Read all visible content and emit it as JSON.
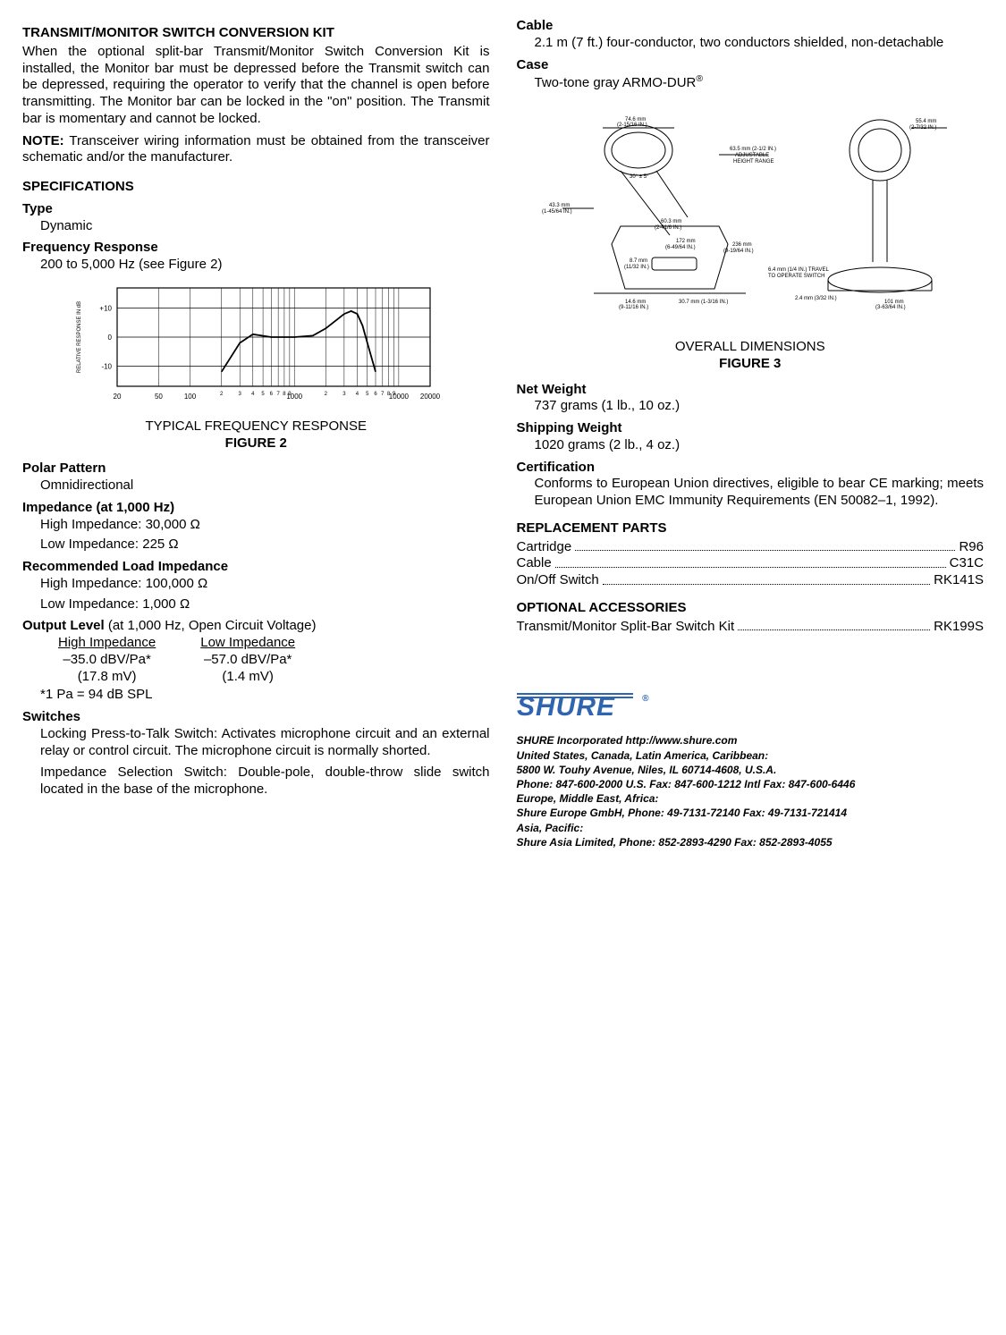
{
  "left": {
    "conv_kit": {
      "heading": "TRANSMIT/MONITOR SWITCH CONVERSION KIT",
      "body": "When the optional split-bar Transmit/Monitor Switch Conversion Kit is installed, the Monitor bar must be depressed before the Transmit switch can be depressed, requiring the operator to verify that the channel is open before transmitting. The Monitor bar can be locked in the \"on\" position. The Transmit bar is momentary and cannot be locked.",
      "note_label": "NOTE:",
      "note": "Transceiver wiring information must be obtained from the transceiver schematic and/or the manufacturer."
    },
    "specs_heading": "SPECIFICATIONS",
    "type": {
      "label": "Type",
      "value": "Dynamic"
    },
    "freq": {
      "label": "Frequency Response",
      "value": "200 to 5,000 Hz (see Figure 2)"
    },
    "chart": {
      "ylabel": "RELATIVE RESPONSE IN dB",
      "yticks": [
        "+10",
        "0",
        "-10"
      ],
      "xticks_major": [
        "20",
        "50",
        "100",
        "1000",
        "10000",
        "20000"
      ],
      "xticks_minor": [
        "2",
        "3",
        "4",
        "5",
        "6",
        "7",
        "8",
        "9",
        "2",
        "3",
        "4",
        "5",
        "6",
        "7",
        "8",
        "9"
      ],
      "line_color": "#000000",
      "grid_color": "#000000",
      "background_color": "#ffffff",
      "points": [
        [
          200,
          -12
        ],
        [
          300,
          -2
        ],
        [
          400,
          1
        ],
        [
          600,
          0
        ],
        [
          1000,
          0
        ],
        [
          1500,
          0.5
        ],
        [
          2000,
          3
        ],
        [
          3000,
          8
        ],
        [
          3500,
          9
        ],
        [
          4000,
          8
        ],
        [
          4500,
          4
        ],
        [
          5000,
          -2
        ],
        [
          6000,
          -12
        ]
      ],
      "xlim": [
        20,
        20000
      ],
      "ylim": [
        -17,
        17
      ]
    },
    "fig2": {
      "caption": "TYPICAL FREQUENCY RESPONSE",
      "label": "FIGURE 2"
    },
    "polar": {
      "label": "Polar Pattern",
      "value": "Omnidirectional"
    },
    "impedance": {
      "label": "Impedance (at 1,000 Hz)",
      "hi": "High Impedance: 30,000 Ω",
      "lo": "Low Impedance: 225 Ω"
    },
    "rec_load": {
      "label": "Recommended Load Impedance",
      "hi": "High Impedance: 100,000 Ω",
      "lo": "Low Impedance: 1,000 Ω"
    },
    "output": {
      "label": "Output Level",
      "paren": "(at 1,000 Hz, Open Circuit Voltage)",
      "hi_hdr": "High Impedance",
      "lo_hdr": "Low Impedance",
      "hi_v1": "–35.0 dBV/Pa*",
      "hi_v2": "(17.8 mV)",
      "lo_v1": "–57.0 dBV/Pa*",
      "lo_v2": "(1.4 mV)",
      "note": "*1 Pa = 94 dB SPL"
    },
    "switches": {
      "label": "Switches",
      "p1": "Locking Press-to-Talk Switch:  Activates microphone circuit and an external relay or control circuit. The microphone circuit is normally shorted.",
      "p2": "Impedance Selection Switch: Double-pole, double-throw slide switch located in the base of the microphone."
    }
  },
  "right": {
    "cable": {
      "label": "Cable",
      "value": "2.1 m (7 ft.) four-conductor, two conductors shielded, non-detachable"
    },
    "case": {
      "label": "Case",
      "value": "Two-tone gray ARMO-DUR",
      "reg": "®"
    },
    "fig3": {
      "caption": "OVERALL DIMENSIONS",
      "label": "FIGURE 3"
    },
    "netw": {
      "label": "Net Weight",
      "value": "737 grams (1 lb., 10 oz.)"
    },
    "shipw": {
      "label": "Shipping Weight",
      "value": "1020 grams (2 lb., 4 oz.)"
    },
    "cert": {
      "label": "Certification",
      "value": "Conforms to European Union directives, eligible to bear CE marking; meets European Union EMC Immunity Requirements (EN 50082–1, 1992)."
    },
    "replacement": {
      "heading": "REPLACEMENT PARTS",
      "rows": [
        {
          "name": "Cartridge",
          "val": "R96"
        },
        {
          "name": "Cable",
          "val": "C31C"
        },
        {
          "name": "On/Off Switch",
          "val": "RK141S"
        }
      ]
    },
    "optional": {
      "heading": "OPTIONAL ACCESSORIES",
      "rows": [
        {
          "name": "Transmit/Monitor Split-Bar Switch Kit",
          "val": "RK199S"
        }
      ]
    },
    "footer": {
      "brand": "SHURE",
      "reg": "®",
      "lines": [
        "SHURE Incorporated  http://www.shure.com",
        "United States, Canada, Latin America, Caribbean:",
        "5800 W. Touhy Avenue, Niles, IL 60714-4608, U.S.A.",
        "Phone: 847-600-2000  U.S. Fax: 847-600-1212  Intl Fax: 847-600-6446",
        "Europe, Middle East, Africa:",
        "Shure Europe GmbH, Phone: 49-7131-72140  Fax: 49-7131-721414",
        "Asia, Pacific:",
        "Shure Asia Limited, Phone: 852-2893-4290  Fax: 852-2893-4055"
      ]
    }
  },
  "colors": {
    "text": "#000000",
    "logo_blue": "#2f65b0",
    "background": "#ffffff"
  }
}
